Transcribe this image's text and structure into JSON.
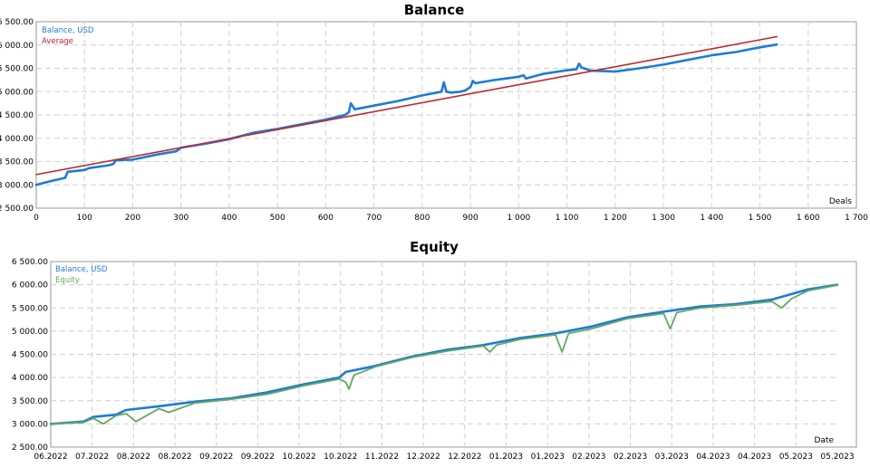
{
  "chart_data": [
    {
      "type": "line",
      "title": "Balance",
      "xlabel": "Deals",
      "ylabel": "",
      "xlim": [
        0,
        1700
      ],
      "ylim": [
        2500,
        6500
      ],
      "x_ticks": [
        0,
        100,
        200,
        300,
        400,
        500,
        600,
        700,
        800,
        900,
        1000,
        1100,
        1200,
        1300,
        1400,
        1500,
        1600,
        1700
      ],
      "x_tick_labels": [
        "0",
        "100",
        "200",
        "300",
        "400",
        "500",
        "600",
        "700",
        "800",
        "900",
        "1 000",
        "1 100",
        "1 200",
        "1 300",
        "1 400",
        "1 500",
        "1 600",
        "1 700"
      ],
      "y_ticks": [
        2500,
        3000,
        3500,
        4000,
        4500,
        5000,
        5500,
        6000,
        6500
      ],
      "y_tick_labels": [
        "2 500.00",
        "3 000.00",
        "3 500.00",
        "4 000.00",
        "4 500.00",
        "5 000.00",
        "5 500.00",
        "6 000.00",
        "6 500.00"
      ],
      "grid": true,
      "legend_position": "top-left",
      "series": [
        {
          "name": "Balance, USD",
          "color": "#1e7bd6",
          "x": [
            0,
            30,
            60,
            65,
            100,
            110,
            150,
            160,
            165,
            200,
            250,
            290,
            300,
            350,
            400,
            450,
            500,
            550,
            600,
            640,
            648,
            652,
            660,
            700,
            750,
            800,
            840,
            845,
            850,
            860,
            880,
            890,
            900,
            905,
            910,
            950,
            1000,
            1010,
            1015,
            1050,
            1100,
            1120,
            1125,
            1130,
            1150,
            1200,
            1250,
            1300,
            1350,
            1400,
            1450,
            1500,
            1535
          ],
          "y": [
            3000,
            3080,
            3150,
            3280,
            3320,
            3360,
            3420,
            3450,
            3530,
            3540,
            3650,
            3720,
            3800,
            3880,
            3980,
            4120,
            4200,
            4300,
            4400,
            4500,
            4560,
            4750,
            4620,
            4700,
            4800,
            4920,
            5000,
            5200,
            5000,
            4980,
            5000,
            5030,
            5100,
            5230,
            5180,
            5250,
            5320,
            5350,
            5280,
            5380,
            5460,
            5480,
            5600,
            5520,
            5450,
            5430,
            5500,
            5580,
            5680,
            5780,
            5850,
            5950,
            6010
          ]
        },
        {
          "name": "Average",
          "color": "#c0272d",
          "x": [
            0,
            1535
          ],
          "y": [
            3220,
            6180
          ]
        }
      ]
    },
    {
      "type": "line",
      "title": "Equity",
      "xlabel": "Date",
      "ylabel": "",
      "xlim": [
        0,
        24
      ],
      "ylim": [
        2500,
        6500
      ],
      "x_tick_labels": [
        "06.2022",
        "07.2022",
        "08.2022",
        "08.2022",
        "09.2022",
        "09.2022",
        "10.2022",
        "10.2022",
        "11.2022",
        "12.2022",
        "12.2022",
        "01.2023",
        "01.2023",
        "02.2023",
        "02.2023",
        "03.2023",
        "04.2023",
        "04.2023",
        "05.2023",
        "05.2023"
      ],
      "y_ticks": [
        2500,
        3000,
        3500,
        4000,
        4500,
        5000,
        5500,
        6000,
        6500
      ],
      "y_tick_labels": [
        "2 500.00",
        "3 000.00",
        "3 500.00",
        "4 000.00",
        "4 500.00",
        "5 000.00",
        "5 500.00",
        "6 000.00",
        "6 500.00"
      ],
      "grid": true,
      "legend_position": "top-left",
      "series": [
        {
          "name": "Balance, USD",
          "color": "#1e7bd6",
          "x": [
            0,
            1,
            1.3,
            2,
            2.3,
            3.3,
            4.4,
            5.5,
            6.6,
            7.7,
            8.8,
            9,
            9.9,
            11,
            12.1,
            13.2,
            14.3,
            15.4,
            16.5,
            17.6,
            18.7,
            19.8,
            20.9,
            22,
            23.1,
            24
          ],
          "y": [
            3000,
            3050,
            3150,
            3200,
            3300,
            3380,
            3480,
            3550,
            3680,
            3850,
            4000,
            4120,
            4250,
            4450,
            4600,
            4700,
            4850,
            4950,
            5100,
            5300,
            5420,
            5530,
            5580,
            5680,
            5900,
            6000
          ]
        },
        {
          "name": "Equity",
          "color": "#62aa5f",
          "x": [
            0,
            1,
            1.3,
            1.6,
            2,
            2.3,
            2.6,
            3.3,
            3.6,
            4.4,
            5.5,
            6.6,
            7.7,
            8.8,
            9,
            9.1,
            9.25,
            9.9,
            11,
            12.1,
            13.2,
            13.4,
            13.6,
            14.3,
            15.4,
            15.6,
            15.8,
            16.5,
            17.6,
            18.7,
            18.9,
            19.1,
            19.8,
            20.9,
            22,
            22.3,
            22.6,
            23.1,
            24
          ],
          "y": [
            3000,
            3030,
            3120,
            3000,
            3180,
            3220,
            3050,
            3330,
            3250,
            3450,
            3530,
            3640,
            3820,
            3970,
            3900,
            3750,
            4050,
            4230,
            4430,
            4570,
            4680,
            4550,
            4700,
            4820,
            4920,
            4550,
            4950,
            5050,
            5270,
            5380,
            5050,
            5400,
            5500,
            5560,
            5640,
            5500,
            5700,
            5870,
            5990
          ]
        }
      ]
    }
  ]
}
